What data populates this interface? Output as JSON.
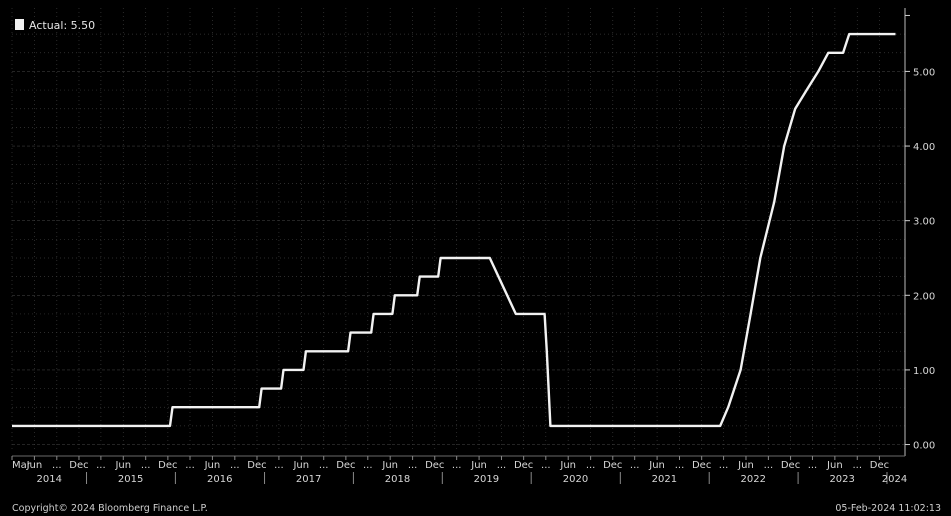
{
  "chart_data": {
    "type": "line",
    "series": [
      {
        "name": "Actual",
        "points": [
          [
            "2014-03-01",
            0.25
          ],
          [
            "2015-12-10",
            0.25
          ],
          [
            "2015-12-20",
            0.5
          ],
          [
            "2016-12-10",
            0.5
          ],
          [
            "2016-12-20",
            0.75
          ],
          [
            "2017-03-10",
            0.75
          ],
          [
            "2017-03-20",
            1.0
          ],
          [
            "2017-06-10",
            1.0
          ],
          [
            "2017-06-20",
            1.25
          ],
          [
            "2017-12-10",
            1.25
          ],
          [
            "2017-12-20",
            1.5
          ],
          [
            "2018-03-15",
            1.5
          ],
          [
            "2018-03-25",
            1.75
          ],
          [
            "2018-06-10",
            1.75
          ],
          [
            "2018-06-20",
            2.0
          ],
          [
            "2018-09-20",
            2.0
          ],
          [
            "2018-09-30",
            2.25
          ],
          [
            "2018-12-15",
            2.25
          ],
          [
            "2018-12-25",
            2.5
          ],
          [
            "2019-07-15",
            2.5
          ],
          [
            "2019-10-30",
            1.75
          ],
          [
            "2020-02-25",
            1.75
          ],
          [
            "2020-03-05",
            1.25
          ],
          [
            "2020-03-20",
            0.25
          ],
          [
            "2022-02-15",
            0.25
          ],
          [
            "2022-03-20",
            0.5
          ],
          [
            "2022-05-10",
            1.0
          ],
          [
            "2022-06-20",
            1.75
          ],
          [
            "2022-07-30",
            2.5
          ],
          [
            "2022-09-25",
            3.25
          ],
          [
            "2022-11-05",
            4.0
          ],
          [
            "2022-12-20",
            4.5
          ],
          [
            "2023-02-05",
            4.75
          ],
          [
            "2023-03-25",
            5.0
          ],
          [
            "2023-05-05",
            5.25
          ],
          [
            "2023-07-05",
            5.25
          ],
          [
            "2023-07-30",
            5.5
          ],
          [
            "2024-02-05",
            5.5
          ]
        ]
      }
    ],
    "legend": {
      "label": "Actual: 5.50",
      "placement": "top-left"
    },
    "ylim": [
      -0.1,
      5.85
    ],
    "y_ticks": [
      "0.00",
      "1.00",
      "2.00",
      "3.00",
      "4.00",
      "5.00"
    ],
    "y_tick_values": [
      0,
      1,
      2,
      3,
      4,
      5
    ],
    "x_range": [
      "2014-03-01",
      "2024-03-15"
    ],
    "x_month_ticks": [
      {
        "date": "2014-03-01",
        "label": "Mar"
      },
      {
        "date": "2014-06-01",
        "label": "Jun"
      },
      {
        "date": "2014-09-01",
        "label": "..."
      },
      {
        "date": "2014-12-01",
        "label": "Dec"
      },
      {
        "date": "2015-03-01",
        "label": "..."
      },
      {
        "date": "2015-06-01",
        "label": "Jun"
      },
      {
        "date": "2015-09-01",
        "label": "..."
      },
      {
        "date": "2015-12-01",
        "label": "Dec"
      },
      {
        "date": "2016-03-01",
        "label": "..."
      },
      {
        "date": "2016-06-01",
        "label": "Jun"
      },
      {
        "date": "2016-09-01",
        "label": "..."
      },
      {
        "date": "2016-12-01",
        "label": "Dec"
      },
      {
        "date": "2017-03-01",
        "label": "..."
      },
      {
        "date": "2017-06-01",
        "label": "Jun"
      },
      {
        "date": "2017-09-01",
        "label": "..."
      },
      {
        "date": "2017-12-01",
        "label": "Dec"
      },
      {
        "date": "2018-03-01",
        "label": "..."
      },
      {
        "date": "2018-06-01",
        "label": "Jun"
      },
      {
        "date": "2018-09-01",
        "label": "..."
      },
      {
        "date": "2018-12-01",
        "label": "Dec"
      },
      {
        "date": "2019-03-01",
        "label": "..."
      },
      {
        "date": "2019-06-01",
        "label": "Jun"
      },
      {
        "date": "2019-09-01",
        "label": "..."
      },
      {
        "date": "2019-12-01",
        "label": "Dec"
      },
      {
        "date": "2020-03-01",
        "label": "..."
      },
      {
        "date": "2020-06-01",
        "label": "Jun"
      },
      {
        "date": "2020-09-01",
        "label": "..."
      },
      {
        "date": "2020-12-01",
        "label": "Dec"
      },
      {
        "date": "2021-03-01",
        "label": "..."
      },
      {
        "date": "2021-06-01",
        "label": "Jun"
      },
      {
        "date": "2021-09-01",
        "label": "..."
      },
      {
        "date": "2021-12-01",
        "label": "Dec"
      },
      {
        "date": "2022-03-01",
        "label": "..."
      },
      {
        "date": "2022-06-01",
        "label": "Jun"
      },
      {
        "date": "2022-09-01",
        "label": "..."
      },
      {
        "date": "2022-12-01",
        "label": "Dec"
      },
      {
        "date": "2023-03-01",
        "label": "..."
      },
      {
        "date": "2023-06-01",
        "label": "Jun"
      },
      {
        "date": "2023-09-01",
        "label": "..."
      },
      {
        "date": "2023-12-01",
        "label": "Dec"
      }
    ],
    "x_year_labels": [
      {
        "date": "2014-08-01",
        "label": "2014"
      },
      {
        "date": "2015-07-01",
        "label": "2015"
      },
      {
        "date": "2016-07-01",
        "label": "2016"
      },
      {
        "date": "2017-07-01",
        "label": "2017"
      },
      {
        "date": "2018-07-01",
        "label": "2018"
      },
      {
        "date": "2019-07-01",
        "label": "2019"
      },
      {
        "date": "2020-07-01",
        "label": "2020"
      },
      {
        "date": "2021-07-01",
        "label": "2021"
      },
      {
        "date": "2022-07-01",
        "label": "2022"
      },
      {
        "date": "2023-07-01",
        "label": "2023"
      },
      {
        "date": "2024-02-01",
        "label": "2024"
      }
    ],
    "x_year_dividers": [
      "2015-01-01",
      "2016-01-01",
      "2017-01-01",
      "2018-01-01",
      "2019-01-01",
      "2020-01-01",
      "2021-01-01",
      "2022-01-01",
      "2023-01-01",
      "2024-01-01"
    ],
    "grid": true
  },
  "footer": {
    "copyright": "Copyright© 2024 Bloomberg Finance L.P.",
    "timestamp": "05-Feb-2024 11:02:13"
  },
  "colors": {
    "background": "#000000",
    "line": "#f2f2f2",
    "grid": "#3a3a3a",
    "text": "#d8d8d8"
  }
}
